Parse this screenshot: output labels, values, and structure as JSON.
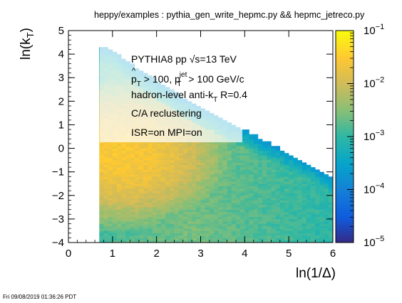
{
  "page_title": "heppy/examples : pythia_gen_write_hepmc.py && hepmc_jetreco.py",
  "timestamp": "Fri 09/08/2019 01:36:26 PDT",
  "chart_data": {
    "type": "heatmap",
    "title": "heppy/examples : pythia_gen_write_hepmc.py && hepmc_jetreco.py",
    "xlabel": "ln(1/Δ)",
    "ylabel": "ln(k_T)",
    "xlim": [
      0,
      6
    ],
    "ylim": [
      -4,
      5
    ],
    "x_ticks": [
      0,
      1,
      2,
      3,
      4,
      5,
      6
    ],
    "y_ticks": [
      -4,
      -3,
      -2,
      -1,
      0,
      1,
      2,
      3,
      4,
      5
    ],
    "z_scale": "log",
    "zlim": [
      1e-05,
      0.1
    ],
    "z_ticks": [
      "10^-5",
      "10^-4",
      "10^-3",
      "10^-2",
      "10^-1"
    ],
    "palette": [
      "#352a87",
      "#0f5cdd",
      "#1481d6",
      "#06a4ca",
      "#2eb7a4",
      "#87bf77",
      "#d1bb59",
      "#fec832",
      "#f9fb0e"
    ],
    "legend_text": [
      "PYTHIA8 pp √s=13 TeV",
      "p̂T > 100, pT jet > 100 GeV/c",
      "hadron-level anti-kT R=0.4",
      "C/A reclustering",
      "ISR=on MPI=on"
    ],
    "legend_lines": {
      "line1": "PYTHIA8 pp √s=13 TeV",
      "line2_a": "p",
      "line2_hat": "^",
      "line2_sub1": "T",
      "line2_b": " > 100, p",
      "line2_sup": "jet",
      "line2_sub2": "T",
      "line2_c": " > 100 GeV/c",
      "line3_a": "hadron-level anti-k",
      "line3_sub": "T",
      "line3_b": " R=0.4",
      "line4": "C/A reclustering",
      "line5": "ISR=on MPI=on"
    },
    "ylabel_parts": {
      "main": "ln(k",
      "sub": "T",
      "close": ")"
    },
    "z_tick_parts": [
      {
        "base": "10",
        "exp": "−5"
      },
      {
        "base": "10",
        "exp": "−4"
      },
      {
        "base": "10",
        "exp": "−3"
      },
      {
        "base": "10",
        "exp": "−2"
      },
      {
        "base": "10",
        "exp": "−1"
      }
    ],
    "kinematic_limit": [
      [
        0.75,
        4.3
      ],
      [
        1.0,
        4.2
      ],
      [
        1.5,
        3.5
      ],
      [
        2.0,
        2.9
      ],
      [
        2.5,
        2.3
      ],
      [
        3.0,
        1.8
      ],
      [
        3.5,
        1.3
      ],
      [
        4.0,
        0.8
      ],
      [
        4.5,
        0.3
      ],
      [
        5.0,
        -0.2
      ],
      [
        5.5,
        -0.7
      ],
      [
        6.0,
        -1.3
      ]
    ],
    "x_min_populated": 0.75,
    "density_profile": {
      "description_values": "approximate log10 bin content by region",
      "core_peak": {
        "x": 1.2,
        "y": -0.3,
        "log10": -1.55
      },
      "low_kt_band": {
        "y": -3.5,
        "log10": -2.6
      },
      "near_limit": {
        "log10": -3.7
      }
    }
  }
}
